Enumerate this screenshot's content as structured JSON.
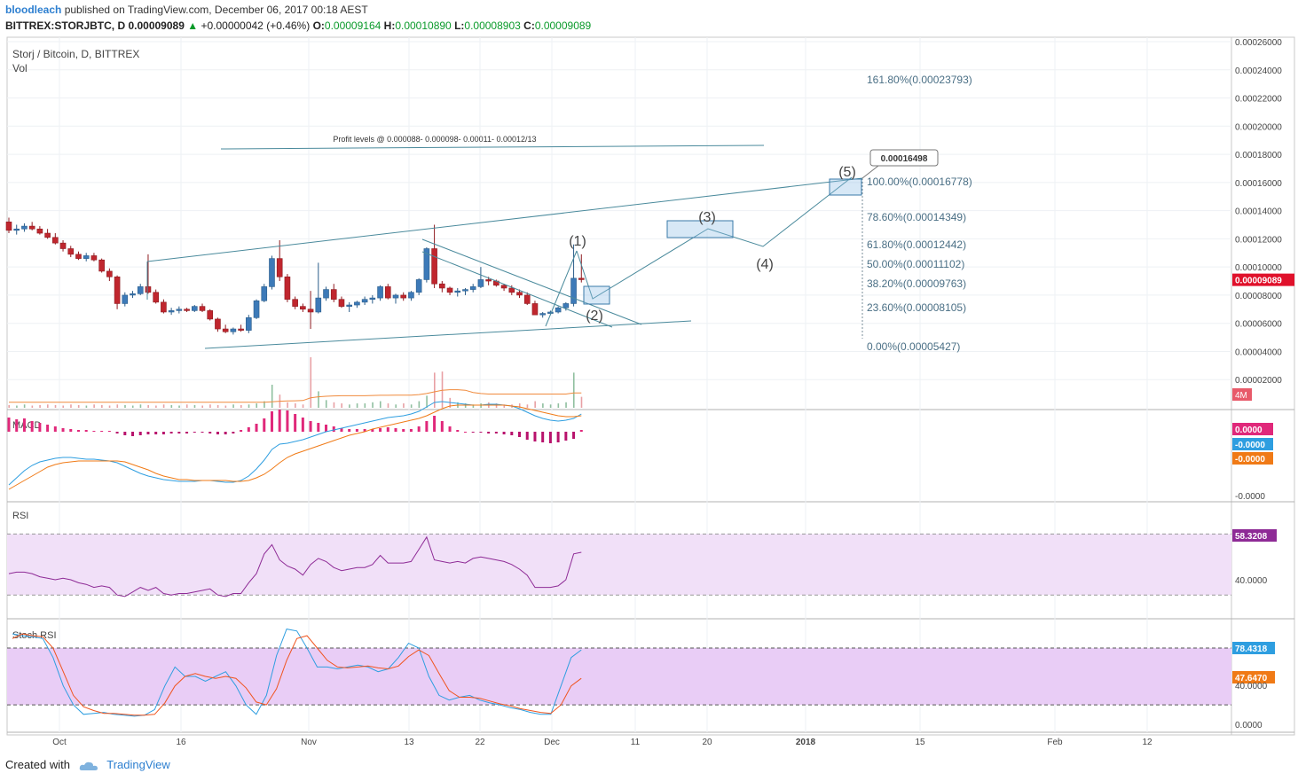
{
  "header": {
    "publisher": "bloodleach",
    "published_text": "published on TradingView.com, December 06, 2017 00:18 AEST",
    "symbol_line": "BITTREX:STORJBTC, D",
    "last": "0.00009089",
    "change": "+0.00000042 (+0.46%)",
    "open_label": "O:",
    "open": "0.00009164",
    "high_label": "H:",
    "high": "0.00010890",
    "low_label": "L:",
    "low": "0.00008903",
    "close_label": "C:",
    "close": "0.00009089"
  },
  "footer": {
    "created_with": "Created with",
    "brand": "TradingView"
  },
  "chart_data": {
    "type": "candlestick",
    "title": "Storj / Bitcoin, D, BITTREX",
    "volume_label": "Vol",
    "colors": {
      "up": "#3d7ab8",
      "down": "#c0262e",
      "trend": "#4a8a9c",
      "fib": "#4a6f85",
      "macd_line": "#2e9ee0",
      "signal_line": "#f07a16",
      "rsi_line": "#8e2b96",
      "rsi_band": "#f1e0f8",
      "stoch_band": "#e9cdf6",
      "stoch_k": "#2e9ee0",
      "stoch_d": "#f0541e",
      "last_price_tag": "#e0112b"
    },
    "price_axis": {
      "min": 0.0,
      "max": 0.00026,
      "ticks": [
        "0.00026000",
        "0.00024000",
        "0.00022000",
        "0.00020000",
        "0.00018000",
        "0.00016000",
        "0.00014000",
        "0.00012000",
        "0.00010000",
        "0.00008000",
        "0.00006000",
        "0.00004000",
        "0.00002000"
      ]
    },
    "x_ticks": [
      "Oct",
      "16",
      "Nov",
      "13",
      "22",
      "Dec",
      "11",
      "20",
      "2018",
      "15",
      "Feb",
      "12"
    ],
    "candles": [
      [
        0.000132,
        0.000135,
        0.000124,
        0.000126
      ],
      [
        0.000126,
        0.00013,
        0.000123,
        0.000127
      ],
      [
        0.000127,
        0.000131,
        0.000125,
        0.000129
      ],
      [
        0.000129,
        0.000132,
        0.000126,
        0.000127
      ],
      [
        0.000127,
        0.000129,
        0.000123,
        0.000124
      ],
      [
        0.000124,
        0.000127,
        0.00012,
        0.000121
      ],
      [
        0.000121,
        0.000124,
        0.000116,
        0.000117
      ],
      [
        0.000117,
        0.000119,
        0.000111,
        0.000113
      ],
      [
        0.000113,
        0.000115,
        0.000107,
        0.000109
      ],
      [
        0.000109,
        0.000111,
        0.000105,
        0.000106
      ],
      [
        0.000106,
        0.00011,
        0.000104,
        0.000108
      ],
      [
        0.000108,
        0.00011,
        0.000104,
        0.000105
      ],
      [
        0.000105,
        0.000106,
        9.6e-05,
        9.7e-05
      ],
      [
        9.7e-05,
        9.9e-05,
        9e-05,
        9.3e-05
      ],
      [
        9.3e-05,
        9.4e-05,
        7e-05,
        7.4e-05
      ],
      [
        7.4e-05,
        8.2e-05,
        7.2e-05,
        8e-05
      ],
      [
        8e-05,
        8.3e-05,
        7.8e-05,
        8.1e-05
      ],
      [
        8.1e-05,
        8.8e-05,
        8e-05,
        8.6e-05
      ],
      [
        8.6e-05,
        0.000109,
        8.1e-05,
        8.2e-05
      ],
      [
        8.2e-05,
        8.4e-05,
        7.4e-05,
        7.5e-05
      ],
      [
        7.5e-05,
        7.7e-05,
        6.7e-05,
        6.8e-05
      ],
      [
        6.8e-05,
        7.1e-05,
        6.6e-05,
        6.9e-05
      ],
      [
        6.9e-05,
        7.2e-05,
        6.7e-05,
        7e-05
      ],
      [
        7e-05,
        7.1e-05,
        6.8e-05,
        6.9e-05
      ],
      [
        6.9e-05,
        7.3e-05,
        6.8e-05,
        7.2e-05
      ],
      [
        7.2e-05,
        7.4e-05,
        6.8e-05,
        6.9e-05
      ],
      [
        6.9e-05,
        7e-05,
        6.2e-05,
        6.3e-05
      ],
      [
        6.3e-05,
        6.4e-05,
        5.4e-05,
        5.6e-05
      ],
      [
        5.6e-05,
        5.9e-05,
        5.3e-05,
        5.4e-05
      ],
      [
        5.4e-05,
        5.7e-05,
        5.2e-05,
        5.6e-05
      ],
      [
        5.6e-05,
        5.9e-05,
        5.4e-05,
        5.5e-05
      ],
      [
        5.5e-05,
        6.6e-05,
        5.3e-05,
        6.4e-05
      ],
      [
        6.4e-05,
        7.7e-05,
        6.3e-05,
        7.6e-05
      ],
      [
        7.6e-05,
        8.8e-05,
        7.5e-05,
        8.6e-05
      ],
      [
        8.6e-05,
        0.000108,
        8.4e-05,
        0.000106
      ],
      [
        0.000106,
        0.000119,
        9e-05,
        9.3e-05
      ],
      [
        9.3e-05,
        9.5e-05,
        7.5e-05,
        7.7e-05
      ],
      [
        7.7e-05,
        7.9e-05,
        7e-05,
        7.2e-05
      ],
      [
        7.2e-05,
        7.4e-05,
        6.8e-05,
        7e-05
      ],
      [
        7e-05,
        8.3e-05,
        5.6e-05,
        6.8e-05
      ],
      [
        6.8e-05,
        0.000103,
        6.7e-05,
        7.8e-05
      ],
      [
        7.8e-05,
        8.6e-05,
        7.6e-05,
        8.4e-05
      ],
      [
        8.4e-05,
        8.8e-05,
        7.5e-05,
        7.7e-05
      ],
      [
        7.7e-05,
        7.9e-05,
        7.1e-05,
        7.2e-05
      ],
      [
        7.2e-05,
        7.5e-05,
        6.8e-05,
        7.3e-05
      ],
      [
        7.3e-05,
        7.6e-05,
        7.1e-05,
        7.5e-05
      ],
      [
        7.5e-05,
        7.9e-05,
        7.3e-05,
        7.7e-05
      ],
      [
        7.7e-05,
        8e-05,
        7.4e-05,
        7.8e-05
      ],
      [
        7.8e-05,
        8.7e-05,
        7.6e-05,
        8.6e-05
      ],
      [
        8.6e-05,
        8.8e-05,
        7.7e-05,
        7.8e-05
      ],
      [
        7.8e-05,
        8.1e-05,
        7.4e-05,
        8e-05
      ],
      [
        8e-05,
        8.2e-05,
        7.6e-05,
        7.8e-05
      ],
      [
        7.8e-05,
        8.3e-05,
        7.6e-05,
        8.2e-05
      ],
      [
        8.2e-05,
        9.2e-05,
        8e-05,
        9.1e-05
      ],
      [
        9.1e-05,
        0.000114,
        8.9e-05,
        0.000113
      ],
      [
        0.000113,
        0.00013,
        8.5e-05,
        8.8e-05
      ],
      [
        8.8e-05,
        9e-05,
        8.2e-05,
        8.5e-05
      ],
      [
        8.5e-05,
        8.6e-05,
        8e-05,
        8.2e-05
      ],
      [
        8.2e-05,
        8.5e-05,
        7.9e-05,
        8.3e-05
      ],
      [
        8.3e-05,
        8.5e-05,
        8e-05,
        8.4e-05
      ],
      [
        8.4e-05,
        8.8e-05,
        8.2e-05,
        8.6e-05
      ],
      [
        8.6e-05,
        0.0001,
        8.5e-05,
        9.1e-05
      ],
      [
        9.1e-05,
        9.3e-05,
        8.7e-05,
        9e-05
      ],
      [
        9e-05,
        9.1e-05,
        8.6e-05,
        8.7e-05
      ],
      [
        8.7e-05,
        8.8e-05,
        8.3e-05,
        8.5e-05
      ],
      [
        8.5e-05,
        8.7e-05,
        8e-05,
        8.2e-05
      ],
      [
        8.2e-05,
        8.4e-05,
        7.8e-05,
        8e-05
      ],
      [
        8e-05,
        8.2e-05,
        7.3e-05,
        7.4e-05
      ],
      [
        7.4e-05,
        7.6e-05,
        6.6e-05,
        6.6e-05
      ],
      [
        6.6e-05,
        6.8e-05,
        6.4e-05,
        6.7e-05
      ],
      [
        6.7e-05,
        6.9e-05,
        6.6e-05,
        6.8e-05
      ],
      [
        6.8e-05,
        7.2e-05,
        6.7e-05,
        7.1e-05
      ],
      [
        7.1e-05,
        7.5e-05,
        6.9e-05,
        7.4e-05
      ],
      [
        7.4e-05,
        0.000116,
        7.2e-05,
        9.2e-05
      ],
      [
        9.2e-05,
        0.000109,
        8.9e-05,
        9.1e-05
      ]
    ],
    "volumes": [
      0.25,
      0.2,
      0.3,
      0.2,
      0.25,
      0.3,
      0.25,
      0.2,
      0.3,
      0.25,
      0.2,
      0.3,
      0.25,
      0.2,
      0.3,
      0.25,
      0.2,
      0.3,
      0.25,
      0.2,
      0.3,
      0.25,
      0.2,
      0.3,
      0.25,
      0.2,
      0.3,
      0.25,
      0.2,
      0.3,
      0.25,
      0.3,
      0.4,
      0.6,
      2.1,
      1.2,
      0.5,
      0.4,
      0.3,
      4.6,
      1.5,
      0.7,
      0.5,
      0.4,
      0.3,
      0.4,
      0.4,
      0.5,
      0.6,
      0.4,
      0.3,
      0.4,
      0.3,
      0.6,
      1.1,
      3.2,
      3.3,
      0.9,
      0.5,
      0.4,
      0.3,
      0.4,
      0.5,
      0.4,
      0.3,
      0.3,
      0.4,
      0.3,
      0.6,
      0.4,
      0.3,
      0.4,
      0.5,
      3.2,
      1.0
    ],
    "volume_ma": [
      0.5,
      0.5,
      0.5,
      0.5,
      0.5,
      0.5,
      0.5,
      0.5,
      0.5,
      0.5,
      0.5,
      0.5,
      0.5,
      0.5,
      0.5,
      0.5,
      0.5,
      0.5,
      0.5,
      0.5,
      0.5,
      0.5,
      0.5,
      0.5,
      0.5,
      0.5,
      0.5,
      0.5,
      0.5,
      0.5,
      0.5,
      0.5,
      0.5,
      0.5,
      0.55,
      0.6,
      0.62,
      0.64,
      0.66,
      0.9,
      1.0,
      1.05,
      1.08,
      1.1,
      1.1,
      1.1,
      1.1,
      1.12,
      1.14,
      1.14,
      1.15,
      1.15,
      1.15,
      1.2,
      1.3,
      1.45,
      1.6,
      1.65,
      1.65,
      1.6,
      1.4,
      1.3,
      1.25,
      1.25,
      1.25,
      1.25,
      1.25,
      1.25,
      1.25,
      1.25,
      1.25,
      1.25,
      1.25,
      1.35,
      1.35
    ],
    "volume_tag": "4M",
    "last_price_tag": "0.00009089",
    "macd": {
      "label": "MACD",
      "hist": [
        1.6,
        1.4,
        1.5,
        1.2,
        1.0,
        0.8,
        0.6,
        0.4,
        0.3,
        0.2,
        0.2,
        0.1,
        0.1,
        0.1,
        -0.2,
        -0.4,
        -0.5,
        -0.4,
        -0.3,
        -0.3,
        -0.3,
        -0.2,
        -0.2,
        -0.2,
        -0.1,
        -0.1,
        -0.2,
        -0.3,
        -0.3,
        -0.2,
        0.2,
        0.5,
        0.9,
        1.5,
        2.3,
        2.5,
        2.4,
        2.0,
        1.6,
        1.2,
        1.0,
        0.8,
        0.6,
        0.4,
        0.3,
        0.3,
        0.3,
        0.3,
        0.4,
        0.5,
        0.4,
        0.3,
        0.3,
        0.6,
        1.2,
        1.8,
        1.2,
        0.6,
        0.2,
        0.0,
        -0.1,
        -0.1,
        -0.2,
        -0.2,
        -0.3,
        -0.4,
        -0.6,
        -0.9,
        -1.1,
        -1.2,
        -1.3,
        -1.2,
        -1.0,
        -0.8,
        0.2
      ],
      "macd": [
        -6.0,
        -5.2,
        -4.4,
        -3.8,
        -3.4,
        -3.2,
        -3.0,
        -2.9,
        -2.9,
        -3.0,
        -3.1,
        -3.1,
        -3.2,
        -3.3,
        -3.5,
        -3.9,
        -4.3,
        -4.7,
        -5.0,
        -5.2,
        -5.4,
        -5.5,
        -5.6,
        -5.6,
        -5.6,
        -5.5,
        -5.5,
        -5.6,
        -5.7,
        -5.7,
        -5.5,
        -5.0,
        -4.2,
        -3.2,
        -2.0,
        -1.4,
        -1.3,
        -1.1,
        -0.9,
        -0.6,
        -0.3,
        0.0,
        0.2,
        0.4,
        0.6,
        0.8,
        1.0,
        1.2,
        1.4,
        1.6,
        1.7,
        1.8,
        2.0,
        2.3,
        2.8,
        3.3,
        3.4,
        3.3,
        3.2,
        3.1,
        3.0,
        3.0,
        3.1,
        3.1,
        3.0,
        2.9,
        2.6,
        2.2,
        1.8,
        1.5,
        1.3,
        1.2,
        1.3,
        1.5,
        2.0
      ],
      "signal": [
        -6.5,
        -6.0,
        -5.5,
        -5.0,
        -4.5,
        -4.0,
        -3.7,
        -3.5,
        -3.4,
        -3.3,
        -3.3,
        -3.3,
        -3.3,
        -3.3,
        -3.3,
        -3.4,
        -3.7,
        -4.0,
        -4.3,
        -4.7,
        -5.0,
        -5.2,
        -5.4,
        -5.4,
        -5.5,
        -5.5,
        -5.5,
        -5.5,
        -5.5,
        -5.6,
        -5.6,
        -5.5,
        -5.2,
        -4.8,
        -4.2,
        -3.5,
        -2.9,
        -2.5,
        -2.2,
        -1.9,
        -1.6,
        -1.3,
        -1.0,
        -0.7,
        -0.4,
        -0.2,
        0.0,
        0.3,
        0.5,
        0.7,
        0.9,
        1.1,
        1.3,
        1.5,
        1.8,
        2.2,
        2.6,
        2.9,
        3.0,
        3.0,
        3.0,
        3.0,
        3.0,
        3.0,
        3.0,
        2.9,
        2.8,
        2.6,
        2.4,
        2.2,
        2.0,
        1.8,
        1.7,
        1.7,
        1.8
      ],
      "tags": [
        "0.0000",
        "-0.0000",
        "-0.0000"
      ],
      "axis_tick": "-0.0000"
    },
    "rsi": {
      "label": "RSI",
      "values": [
        44,
        45,
        45,
        44,
        42,
        41,
        40,
        41,
        40,
        38,
        37,
        35,
        36,
        35,
        30,
        29,
        32,
        35,
        33,
        35,
        31,
        30,
        31,
        31,
        32,
        33,
        34,
        30,
        29,
        31,
        31,
        38,
        44,
        57,
        63,
        53,
        49,
        47,
        43,
        50,
        54,
        52,
        48,
        46,
        47,
        48,
        48,
        50,
        56,
        51,
        51,
        51,
        52,
        60,
        68,
        53,
        52,
        51,
        52,
        51,
        54,
        55,
        54,
        53,
        52,
        50,
        47,
        43,
        35,
        35,
        35,
        36,
        40,
        57,
        58
      ],
      "tag": "58.3208",
      "tick": "40.0000",
      "band": [
        30,
        70
      ]
    },
    "stoch_rsi": {
      "label": "Stoch RSI",
      "k": [
        95,
        93,
        92,
        90,
        70,
        40,
        20,
        10,
        11,
        12,
        10,
        9,
        8,
        9,
        15,
        40,
        60,
        50,
        50,
        45,
        50,
        55,
        40,
        20,
        10,
        30,
        72,
        100,
        98,
        80,
        60,
        60,
        58,
        60,
        62,
        60,
        55,
        58,
        70,
        85,
        80,
        50,
        30,
        25,
        28,
        30,
        25,
        22,
        20,
        17,
        15,
        12,
        10,
        10,
        40,
        70,
        78
      ],
      "d": [
        90,
        95,
        93,
        92,
        80,
        55,
        30,
        18,
        14,
        11,
        11,
        10,
        9,
        9,
        10,
        22,
        40,
        50,
        53,
        50,
        48,
        50,
        48,
        38,
        23,
        20,
        37,
        67,
        90,
        93,
        80,
        67,
        60,
        59,
        60,
        61,
        59,
        58,
        61,
        71,
        78,
        72,
        53,
        35,
        28,
        28,
        27,
        24,
        21,
        19,
        16,
        14,
        12,
        11,
        20,
        40,
        48
      ],
      "tags": [
        "78.4318",
        "47.6470"
      ],
      "tick_0": "0.0000",
      "tick_40": "40.0000",
      "band": [
        20,
        80
      ]
    },
    "annotations": {
      "profit_text": "Profit levels @ 0.000088- 0.000098- 0.00011- 0.00012/13",
      "wave_labels": [
        "(1)",
        "(2)",
        "(3)",
        "(4)",
        "(5)"
      ],
      "target_tag": "0.00016498",
      "fib_levels": [
        {
          "label": "161.80%(0.00023793)",
          "value": 0.00023793
        },
        {
          "label": "100.00%(0.00016778)",
          "value": 0.00016778
        },
        {
          "label": "78.60%(0.00014349)",
          "value": 0.00014349
        },
        {
          "label": "61.80%(0.00012442)",
          "value": 0.00012442
        },
        {
          "label": "50.00%(0.00011102)",
          "value": 0.00011102
        },
        {
          "label": "38.20%(0.00009763)",
          "value": 9.763e-05
        },
        {
          "label": "23.60%(0.00008105)",
          "value": 8.105e-05
        },
        {
          "label": "0.00%(0.00005427)",
          "value": 5.427e-05
        }
      ]
    }
  }
}
